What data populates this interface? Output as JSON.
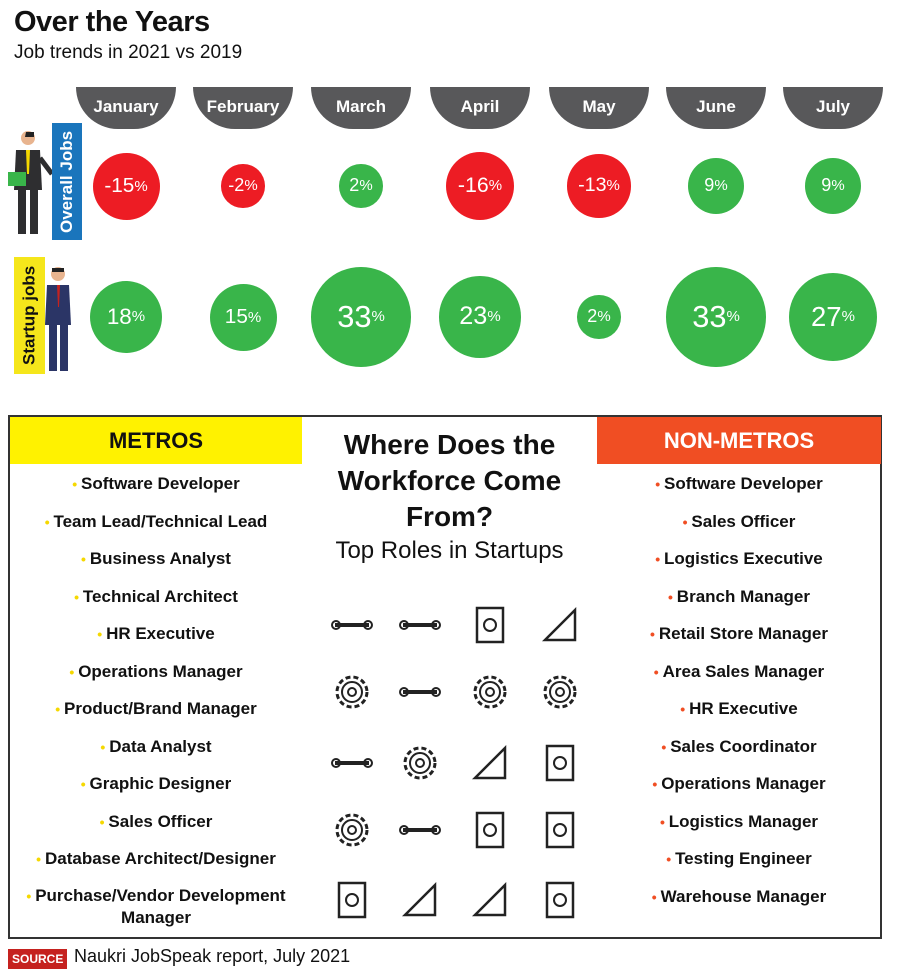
{
  "header": {
    "title": "Over the Years",
    "subtitle": "Job trends in 2021 vs 2019"
  },
  "row_labels": {
    "overall": "Overall Jobs",
    "startup": "Startup jobs"
  },
  "colors": {
    "positive": "#39b54a",
    "negative": "#ed1c24",
    "tab": "#58585a"
  },
  "chart_data": {
    "type": "bubble",
    "title": "Over the Years",
    "subtitle": "Job trends in 2021 vs 2019",
    "categories": [
      "January",
      "February",
      "March",
      "April",
      "May",
      "June",
      "July"
    ],
    "series": [
      {
        "name": "Overall Jobs",
        "values": [
          -15,
          -2,
          2,
          -16,
          -13,
          9,
          9
        ]
      },
      {
        "name": "Startup jobs",
        "values": [
          18,
          15,
          33,
          23,
          2,
          33,
          27
        ]
      }
    ],
    "unit": "%"
  },
  "workforce": {
    "title": "Where Does the Workforce Come From?",
    "subtitle": "Top Roles in Startups",
    "metros": {
      "label": "METROS",
      "items": [
        "Software Developer",
        "Team Lead/Technical Lead",
        "Business Analyst",
        "Technical Architect",
        "HR Executive",
        "Operations Manager",
        "Product/Brand Manager",
        "Data Analyst",
        "Graphic Designer",
        "Sales Officer",
        "Database Architect/Designer",
        "Purchase/Vendor Development  Manager"
      ]
    },
    "non_metros": {
      "label": "NON-METROS",
      "items": [
        "Software Developer",
        "Sales Officer",
        "Logistics Executive",
        "Branch Manager",
        "Retail Store Manager",
        "Area Sales Manager",
        "HR Executive",
        "Sales Coordinator",
        "Operations Manager",
        "Logistics Manager",
        "Testing Engineer",
        "Warehouse Manager"
      ]
    },
    "icons": [
      "wrench-icon",
      "wrench-icon",
      "chip-icon",
      "blueprint-icon",
      "gear-tool-icon",
      "hand-wrench-icon",
      "gear-icon",
      "gear-icon",
      "screwdriver-icon",
      "brain-gear-icon",
      "compass-icon",
      "tablet-gear-icon",
      "gear-icon",
      "hammer-icon",
      "tablet-gear-icon",
      "document-gear-icon",
      "clipboard-icon",
      "helmet-icon",
      "set-square-icon",
      "calculator-icon"
    ]
  },
  "source": {
    "tag": "SOURCE",
    "text": "Naukri JobSpeak report, July 2021"
  }
}
